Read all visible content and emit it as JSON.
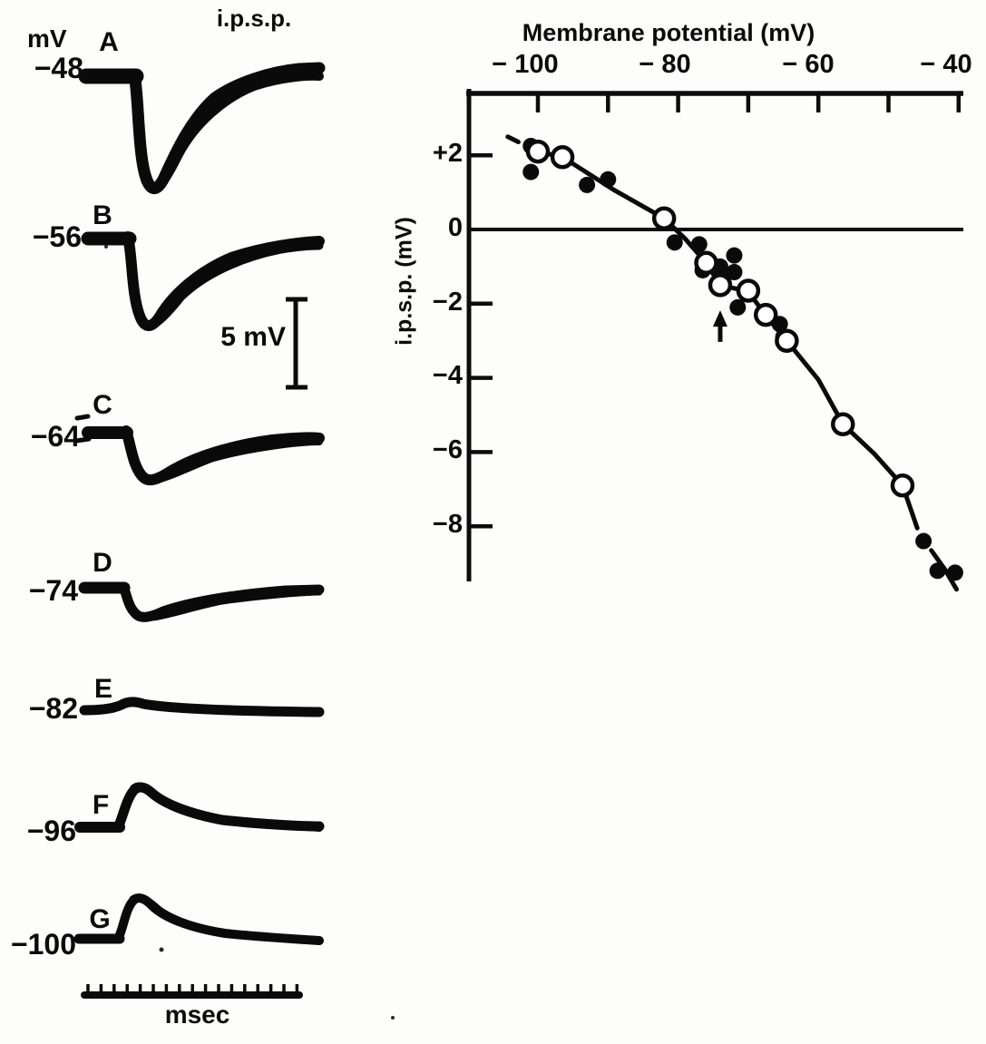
{
  "left_panel": {
    "unit": "mV",
    "title": "i.p.s.p.",
    "scale_bar_label": "5 mV",
    "time_label": "msec",
    "traces": [
      {
        "label": "A",
        "v": "−48"
      },
      {
        "label": "B",
        "v": "−56"
      },
      {
        "label": "C",
        "v": "−64"
      },
      {
        "label": "D",
        "v": "−74"
      },
      {
        "label": "E",
        "v": "−82"
      },
      {
        "label": "F",
        "v": "−96"
      },
      {
        "label": "G",
        "v": "−100"
      }
    ]
  },
  "chart": {
    "x_title": "Membrane potential (mV)",
    "y_title": "i.p.s.p. (mV)",
    "x_tick_labels": [
      "− 100",
      "− 80",
      "− 60",
      "− 40"
    ],
    "y_tick_labels": [
      "+2",
      "0",
      "−2",
      "−4",
      "−6",
      "−8"
    ]
  },
  "chart_data": {
    "type": "scatter",
    "title": "",
    "xlabel": "Membrane potential (mV)",
    "ylabel": "i.p.s.p. (mV)",
    "x_axis_position": "top",
    "xlim": [
      -110,
      -37
    ],
    "ylim": [
      -10.3,
      3.7
    ],
    "x_ticks": [
      -100,
      -90,
      -80,
      -70,
      -60,
      -50,
      -40
    ],
    "x_labeled_ticks": [
      -100,
      -80,
      -60,
      -40
    ],
    "y_ticks": [
      2,
      0,
      -2,
      -4,
      -6,
      -8
    ],
    "zero_line_y": 0,
    "series": [
      {
        "name": "open circles",
        "marker": "open-circle",
        "points": [
          [
            -100,
            2.1
          ],
          [
            -96.5,
            1.95
          ],
          [
            -82,
            0.3
          ],
          [
            -76,
            -0.9
          ],
          [
            -74,
            -1.5
          ],
          [
            -70,
            -1.65
          ],
          [
            -67.5,
            -2.3
          ],
          [
            -64.5,
            -3.0
          ],
          [
            -56.5,
            -5.25
          ],
          [
            -48,
            -6.9
          ]
        ]
      },
      {
        "name": "filled circles",
        "marker": "filled-circle",
        "points": [
          [
            -101,
            2.25
          ],
          [
            -101,
            1.55
          ],
          [
            -93,
            1.2
          ],
          [
            -90,
            1.35
          ],
          [
            -80.5,
            -0.35
          ],
          [
            -77,
            -0.4
          ],
          [
            -76.5,
            -1.1
          ],
          [
            -74,
            -1.0
          ],
          [
            -74,
            -1.2
          ],
          [
            -72,
            -0.7
          ],
          [
            -72,
            -1.15
          ],
          [
            -71.5,
            -2.1
          ],
          [
            -65.5,
            -2.55
          ],
          [
            -65,
            -2.9
          ],
          [
            -45,
            -8.4
          ],
          [
            -43,
            -9.2
          ],
          [
            -40.5,
            -9.25
          ]
        ]
      }
    ],
    "fit_curve": {
      "dashed": [
        [
          -104.3,
          2.5
        ],
        [
          -100,
          2.1
        ],
        [
          -96.5,
          1.95
        ]
      ],
      "solid": [
        [
          -96.5,
          1.95
        ],
        [
          -89,
          1.05
        ],
        [
          -82,
          0.3
        ],
        [
          -79,
          -0.25
        ],
        [
          -76,
          -0.9
        ],
        [
          -74,
          -1.5
        ],
        [
          -70,
          -1.67
        ],
        [
          -67.5,
          -2.32
        ],
        [
          -64.5,
          -3.0
        ],
        [
          -60,
          -4.05
        ],
        [
          -56.5,
          -5.25
        ],
        [
          -52,
          -6.05
        ],
        [
          -48,
          -6.9
        ],
        [
          -45.9,
          -8.05
        ]
      ],
      "solid2": [
        [
          -43.9,
          -8.65
        ],
        [
          -42,
          -9.15
        ],
        [
          -40.3,
          -9.7
        ]
      ]
    },
    "arrow_annotation": {
      "x": -74,
      "y_tip": -2.18,
      "y_tail": -3.03
    }
  }
}
